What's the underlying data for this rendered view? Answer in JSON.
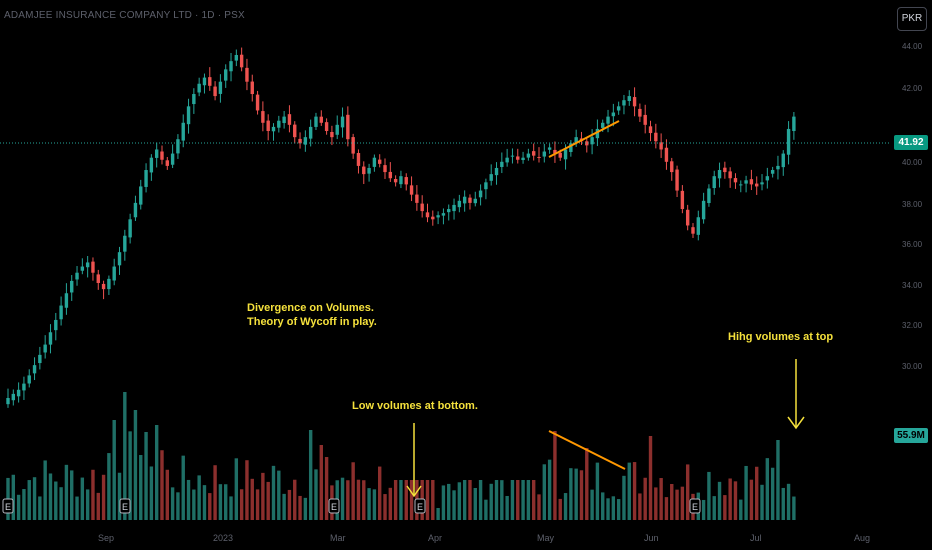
{
  "header": {
    "title": "ADAMJEE INSURANCE COMPANY LTD · 1D · PSX",
    "currency": "PKR"
  },
  "price_tag": "41.92",
  "volume_tag": "55.9M",
  "annotations": {
    "divergence_line1": "Divergence on Volumes.",
    "divergence_line2": "Theory of Wycoff in play.",
    "low_volumes": "Low volumes at bottom.",
    "high_volumes": "Hihg volumes at top"
  },
  "earnings_marker": "E",
  "colors": {
    "up": "#26a69a",
    "down": "#ef5350",
    "annotation": "#f5e13c",
    "trendline": "#ff9800",
    "price_line": "#26a69a"
  },
  "chart_data": {
    "type": "candlestick",
    "x_ticks": [
      "Sep",
      "2023",
      "Mar",
      "Apr",
      "May",
      "Jun",
      "Jul",
      "Aug"
    ],
    "y_ticks": [
      "44.00",
      "42.00",
      "40.00",
      "38.00",
      "36.00",
      "34.00",
      "32.00",
      "30.00"
    ],
    "last_price": 41.92,
    "last_volume_millions": 55.9,
    "close_series": [
      28.2,
      28.4,
      28.6,
      28.9,
      29.3,
      29.8,
      30.3,
      30.8,
      31.4,
      32.0,
      32.7,
      33.3,
      33.9,
      34.3,
      34.6,
      34.8,
      34.3,
      33.8,
      33.5,
      34.0,
      34.6,
      35.3,
      36.1,
      36.9,
      37.7,
      38.5,
      39.3,
      39.9,
      40.3,
      39.8,
      39.5,
      40.1,
      40.8,
      41.6,
      42.4,
      43.0,
      43.5,
      43.8,
      43.4,
      42.9,
      43.6,
      44.2,
      44.6,
      44.9,
      44.3,
      43.6,
      43.0,
      42.2,
      41.6,
      41.2,
      41.4,
      41.7,
      41.9,
      41.5,
      40.9,
      40.6,
      40.9,
      41.4,
      41.9,
      41.6,
      41.2,
      40.9,
      41.5,
      41.9,
      40.8,
      40.1,
      39.5,
      39.1,
      39.4,
      39.9,
      39.6,
      39.2,
      38.9,
      38.7,
      39.0,
      38.6,
      38.1,
      37.7,
      37.3,
      37.0,
      36.9,
      37.1,
      37.2,
      37.4,
      37.6,
      37.8,
      38.0,
      37.7,
      37.9,
      38.3,
      38.7,
      39.1,
      39.4,
      39.7,
      39.9,
      40.0,
      39.8,
      39.9,
      40.1,
      40.0,
      39.9,
      40.2,
      40.4,
      40.1,
      39.9,
      40.3,
      40.6,
      40.9,
      40.7,
      40.5,
      40.9,
      41.3,
      41.6,
      41.9,
      42.1,
      42.4,
      42.7,
      42.9,
      42.4,
      41.9,
      41.5,
      41.1,
      40.7,
      40.3,
      39.7,
      39.2,
      38.3,
      37.4,
      36.6,
      36.2,
      37.0,
      37.8,
      38.4,
      39.0,
      39.3,
      39.2,
      38.9,
      38.7,
      38.6,
      38.8,
      38.6,
      38.5,
      38.7,
      39.0,
      39.3,
      39.5,
      40.1,
      41.3,
      41.9
    ]
  }
}
